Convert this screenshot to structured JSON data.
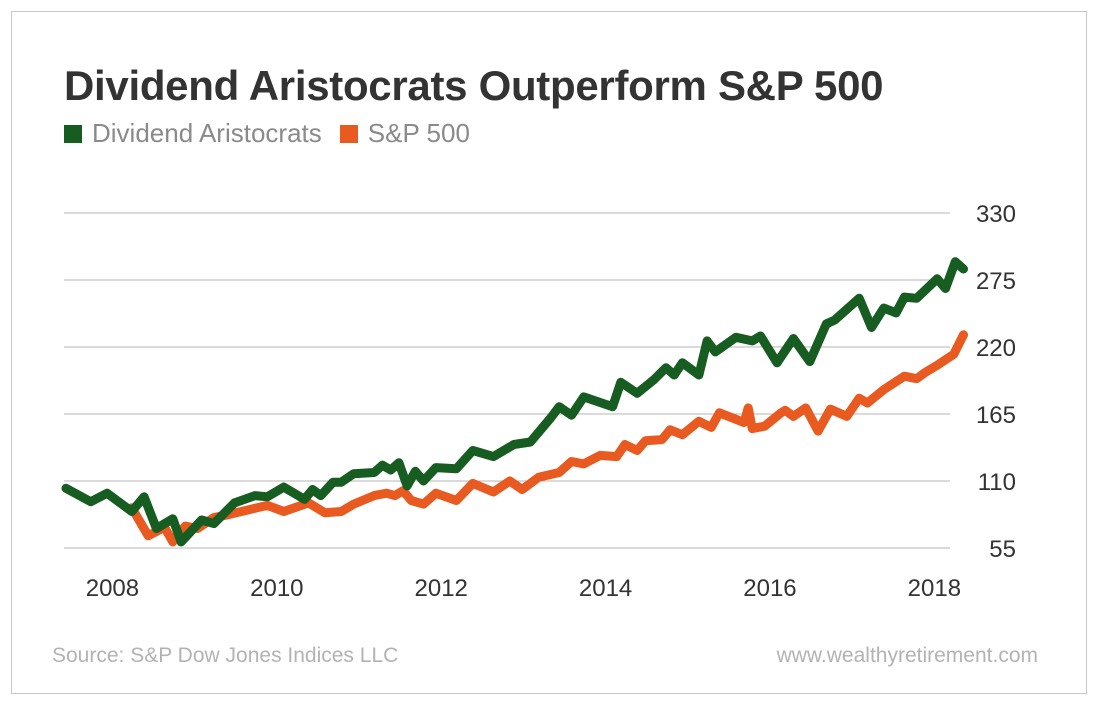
{
  "chart_data": {
    "type": "line",
    "title": "Dividend Aristocrats Outperform S&P 500",
    "xlabel": "",
    "ylabel": "",
    "xlim": [
      2007.8,
      2018.75
    ],
    "ylim": [
      55,
      330
    ],
    "yticks": [
      55,
      110,
      165,
      220,
      275,
      330
    ],
    "xticks": [
      2008,
      2010,
      2012,
      2014,
      2016,
      2018
    ],
    "grid": "horizontal",
    "legend_position": "top-left",
    "series": [
      {
        "name": "Dividend Aristocrats",
        "color": "#175c21",
        "x": [
          2007.8,
          2008.1,
          2008.3,
          2008.6,
          2008.75,
          2008.9,
          2009.1,
          2009.2,
          2009.45,
          2009.6,
          2009.85,
          2010.1,
          2010.25,
          2010.45,
          2010.7,
          2010.8,
          2010.9,
          2011.05,
          2011.15,
          2011.3,
          2011.55,
          2011.65,
          2011.75,
          2011.85,
          2011.95,
          2012.05,
          2012.15,
          2012.3,
          2012.55,
          2012.75,
          2013.0,
          2013.25,
          2013.45,
          2013.7,
          2013.8,
          2013.95,
          2014.1,
          2014.45,
          2014.55,
          2014.75,
          2014.95,
          2015.1,
          2015.2,
          2015.3,
          2015.5,
          2015.6,
          2015.7,
          2015.95,
          2016.15,
          2016.25,
          2016.45,
          2016.65,
          2016.85,
          2017.05,
          2017.15,
          2017.45,
          2017.6,
          2017.75,
          2017.9,
          2018.0,
          2018.15,
          2018.4,
          2018.5,
          2018.62,
          2018.72
        ],
        "values": [
          104,
          93,
          100,
          85,
          97,
          71,
          79,
          60,
          78,
          75,
          92,
          98,
          97,
          105,
          95,
          103,
          98,
          109,
          109,
          116,
          117,
          123,
          119,
          125,
          106,
          118,
          110,
          121,
          120,
          135,
          130,
          140,
          142,
          162,
          171,
          164,
          179,
          171,
          191,
          182,
          193,
          203,
          197,
          207,
          197,
          225,
          216,
          228,
          225,
          229,
          207,
          227,
          208,
          239,
          242,
          260,
          236,
          252,
          248,
          261,
          260,
          276,
          268,
          290,
          284
        ]
      },
      {
        "name": "S&P 500",
        "color": "#e85a1f",
        "x": [
          2008.6,
          2008.8,
          2009.0,
          2009.1,
          2009.25,
          2009.4,
          2009.6,
          2009.75,
          2010.0,
          2010.25,
          2010.45,
          2010.75,
          2010.95,
          2011.15,
          2011.3,
          2011.55,
          2011.7,
          2011.8,
          2011.9,
          2012.0,
          2012.15,
          2012.3,
          2012.55,
          2012.75,
          2013.0,
          2013.2,
          2013.35,
          2013.55,
          2013.8,
          2013.95,
          2014.1,
          2014.3,
          2014.5,
          2014.6,
          2014.75,
          2014.85,
          2015.05,
          2015.15,
          2015.3,
          2015.5,
          2015.65,
          2015.75,
          2016.05,
          2016.1,
          2016.15,
          2016.3,
          2016.5,
          2016.55,
          2016.65,
          2016.8,
          2016.95,
          2017.1,
          2017.3,
          2017.45,
          2017.55,
          2017.75,
          2018.0,
          2018.15,
          2018.25,
          2018.4,
          2018.6,
          2018.72
        ],
        "values": [
          88,
          65,
          72,
          60,
          73,
          71,
          80,
          82,
          86,
          90,
          85,
          92,
          84,
          85,
          91,
          98,
          100,
          98,
          102,
          94,
          91,
          100,
          94,
          108,
          101,
          110,
          103,
          113,
          117,
          126,
          124,
          131,
          130,
          140,
          135,
          143,
          144,
          152,
          148,
          159,
          154,
          166,
          158,
          170,
          153,
          155,
          166,
          168,
          163,
          170,
          151,
          169,
          163,
          178,
          174,
          185,
          196,
          194,
          199,
          205,
          214,
          230
        ]
      }
    ]
  },
  "legend": {
    "items": [
      {
        "label": "Dividend Aristocrats",
        "color": "#175c21"
      },
      {
        "label": "S&P 500",
        "color": "#e85a1f"
      }
    ]
  },
  "footer": {
    "source": "Source: S&P Dow Jones Indices LLC",
    "website": "www.wealthyretirement.com"
  }
}
